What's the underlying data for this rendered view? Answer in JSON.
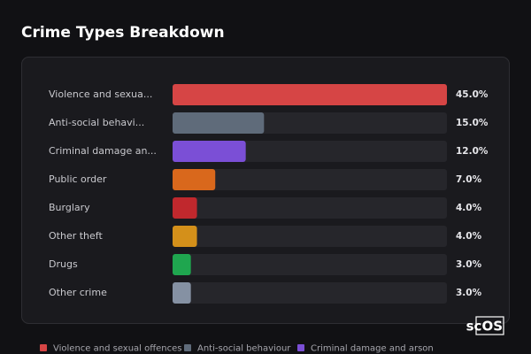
{
  "chart_data": {
    "type": "bar",
    "orientation": "horizontal",
    "title": "Crime Types Breakdown",
    "categories": [
      "Violence and sexua...",
      "Anti-social behavi...",
      "Criminal damage an...",
      "Public order",
      "Burglary",
      "Other theft",
      "Drugs",
      "Other crime"
    ],
    "values": [
      45,
      15,
      12,
      7,
      4,
      4,
      3,
      3
    ],
    "value_labels": [
      "45.0%",
      "15.0%",
      "12.0%",
      "7.0%",
      "4.0%",
      "4.0%",
      "3.0%",
      "3.0%"
    ],
    "colors": [
      "#d64545",
      "#5f6b7a",
      "#7b4fd6",
      "#d9681c",
      "#c0282d",
      "#d4901a",
      "#1fa64f",
      "#8591a3"
    ],
    "xlim": [
      0,
      45
    ],
    "legend": [
      "Violence and sexual offences",
      "Anti-social behaviour",
      "Criminal damage and arson"
    ],
    "watermark": "scOS"
  }
}
